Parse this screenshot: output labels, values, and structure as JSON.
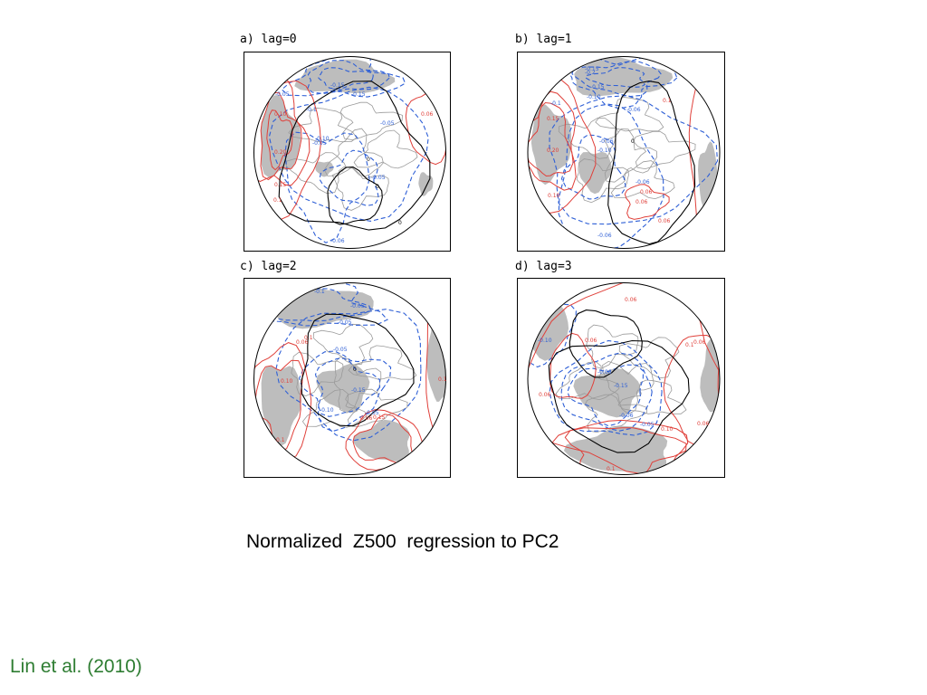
{
  "colors": {
    "positive": "#e0403a",
    "negative": "#2e5fd6",
    "zero": "#000000",
    "shading": "#bdbdbd",
    "coast": "#9a9a9a",
    "citation": "#2e7d32"
  },
  "panels": [
    {
      "title": "a) lag=0",
      "labels": {
        "pos": [
          "0.20",
          "0.15",
          "0.1",
          "0.06",
          "0.10"
        ],
        "neg": [
          "-0.15",
          "-0.2",
          "-0.15",
          "-0.05",
          "-0.05",
          "-0.1",
          "-0.10",
          "-0.05",
          "-0.05",
          "-0.06"
        ],
        "zero": [
          "0",
          "0",
          "0"
        ]
      }
    },
    {
      "title": "b) lag=1",
      "labels": {
        "pos": [
          "0.20",
          "0.15",
          "0.10",
          "0.06",
          "0.1",
          "0.06",
          "0.06"
        ],
        "neg": [
          "-0.15",
          "-0.2",
          "-0.15",
          "-0.10",
          "-0.1",
          "-0.06",
          "-0.06",
          "-0.10",
          "-0.06",
          "-0.06"
        ],
        "zero": [
          "0"
        ]
      }
    },
    {
      "title": "c) lag=2",
      "labels": {
        "pos": [
          "0.10",
          "0.1",
          "0.06",
          "0.1",
          "0.15",
          "0.06",
          "0.1"
        ],
        "neg": [
          "-0.1",
          "-0.05",
          "-0.05",
          "-0.05",
          "-0.15",
          "-0.10",
          "-0.05"
        ],
        "zero": [
          "0"
        ]
      }
    },
    {
      "title": "d) lag=3",
      "labels": {
        "pos": [
          "0.06",
          "0.06",
          "0.1",
          "0.06",
          "0.10",
          "0.06",
          "0.1",
          "0.06"
        ],
        "neg": [
          "-0.10",
          "-0.06",
          "-0.15",
          "-0.06",
          "-0.05"
        ],
        "zero": []
      }
    }
  ],
  "caption": "Normalized  Z500  regression to PC2",
  "citation": "Lin et al. (2010)"
}
